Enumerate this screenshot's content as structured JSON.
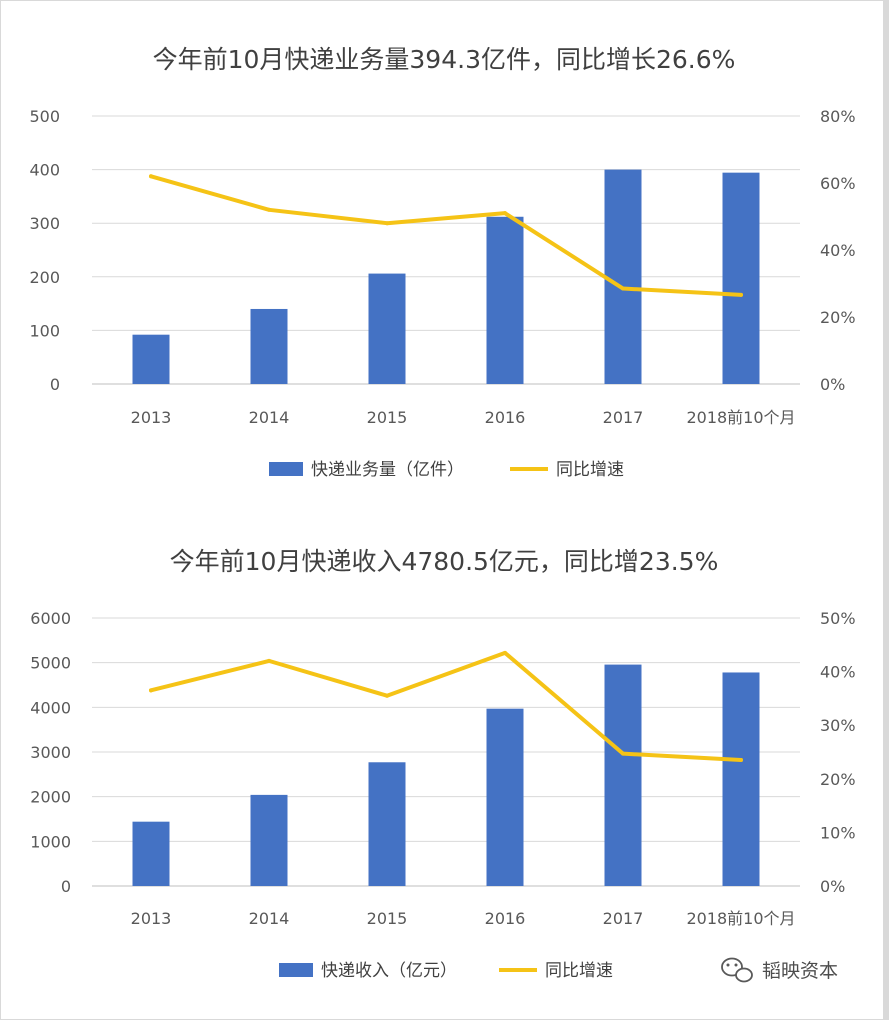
{
  "chart_data": [
    {
      "type": "bar",
      "title": "今年前10月快递业务量394.3亿件，同比增长26.6%",
      "categories": [
        "2013",
        "2014",
        "2015",
        "2016",
        "2017",
        "2018前10个月"
      ],
      "series": [
        {
          "name": "快递业务量（亿件）",
          "type": "bar",
          "axis": "left",
          "values": [
            92,
            140,
            206,
            312,
            400,
            394.3
          ]
        },
        {
          "name": "同比增速",
          "type": "line",
          "axis": "right",
          "values": [
            62,
            52,
            48,
            51,
            28.5,
            26.6
          ]
        }
      ],
      "ylim": [
        0,
        500
      ],
      "yticks": [
        "0",
        "100",
        "200",
        "300",
        "400",
        "500"
      ],
      "y2lim": [
        0,
        80
      ],
      "y2ticks": [
        "0%",
        "20%",
        "40%",
        "60%",
        "80%"
      ],
      "colors": {
        "bar": "#4472c4",
        "line": "#f5c316"
      },
      "grid": true,
      "legend": "bottom"
    },
    {
      "type": "bar",
      "title": "今年前10月快递收入4780.5亿元，同比增23.5%",
      "categories": [
        "2013",
        "2014",
        "2015",
        "2016",
        "2017",
        "2018前10个月"
      ],
      "series": [
        {
          "name": "快递收入（亿元）",
          "type": "bar",
          "axis": "left",
          "values": [
            1440,
            2040,
            2770,
            3970,
            4957,
            4780.5
          ]
        },
        {
          "name": "同比增速",
          "type": "line",
          "axis": "right",
          "values": [
            36.5,
            42,
            35.5,
            43.5,
            24.7,
            23.5
          ]
        }
      ],
      "ylim": [
        0,
        6000
      ],
      "yticks": [
        "0",
        "1000",
        "2000",
        "3000",
        "4000",
        "5000",
        "6000"
      ],
      "y2lim": [
        0,
        50
      ],
      "y2ticks": [
        "0%",
        "10%",
        "20%",
        "30%",
        "40%",
        "50%"
      ],
      "colors": {
        "bar": "#4472c4",
        "line": "#f5c316"
      },
      "grid": true,
      "legend": "bottom"
    }
  ],
  "watermark": {
    "text": "韬映资本",
    "icon": "wechat-icon"
  }
}
